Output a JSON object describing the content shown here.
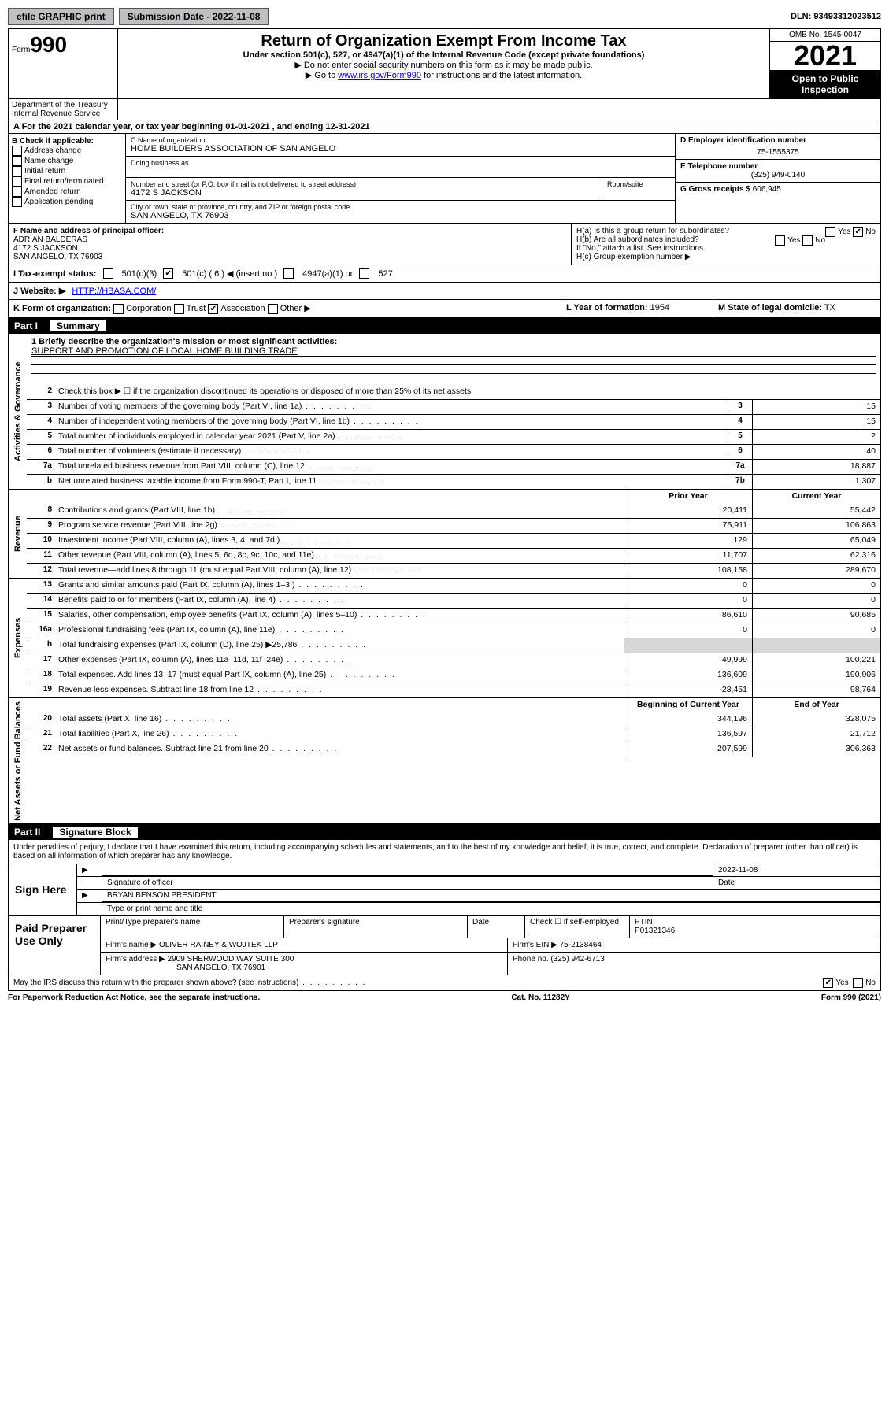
{
  "topbar": {
    "efile": "efile GRAPHIC print",
    "submission_label": "Submission Date - 2022-11-08",
    "dln": "DLN: 93493312023512"
  },
  "header": {
    "form_word": "Form",
    "form_num": "990",
    "title": "Return of Organization Exempt From Income Tax",
    "subtitle": "Under section 501(c), 527, or 4947(a)(1) of the Internal Revenue Code (except private foundations)",
    "note1": "▶ Do not enter social security numbers on this form as it may be made public.",
    "note2_pre": "▶ Go to ",
    "note2_link": "www.irs.gov/Form990",
    "note2_post": " for instructions and the latest information.",
    "omb": "OMB No. 1545-0047",
    "year": "2021",
    "open": "Open to Public Inspection",
    "dept": "Department of the Treasury Internal Revenue Service"
  },
  "rowA": {
    "text_pre": "A For the 2021 calendar year, or tax year beginning ",
    "begin": "01-01-2021",
    "text_mid": " , and ending ",
    "end": "12-31-2021"
  },
  "B": {
    "label": "B Check if applicable:",
    "items": [
      "Address change",
      "Name change",
      "Initial return",
      "Final return/terminated",
      "Amended return",
      "Application pending"
    ]
  },
  "C": {
    "name_label": "C Name of organization",
    "name": "HOME BUILDERS ASSOCIATION OF SAN ANGELO",
    "dba_label": "Doing business as",
    "street_label": "Number and street (or P.O. box if mail is not delivered to street address)",
    "room_label": "Room/suite",
    "street": "4172 S JACKSON",
    "city_label": "City or town, state or province, country, and ZIP or foreign postal code",
    "city": "SAN ANGELO, TX  76903"
  },
  "D": {
    "label": "D Employer identification number",
    "val": "75-1555375"
  },
  "E": {
    "label": "E Telephone number",
    "val": "(325) 949-0140"
  },
  "G": {
    "label": "G Gross receipts $",
    "val": "606,945"
  },
  "F": {
    "label": "F Name and address of principal officer:",
    "name": "ADRIAN BALDERAS",
    "addr1": "4172 S JACKSON",
    "addr2": "SAN ANGELO, TX  76903"
  },
  "H": {
    "a": "H(a)  Is this a group return for subordinates?",
    "b": "H(b)  Are all subordinates included?",
    "b_note": "If \"No,\" attach a list. See instructions.",
    "c": "H(c)  Group exemption number ▶",
    "yes": "Yes",
    "no": "No"
  },
  "I": {
    "label": "I   Tax-exempt status:",
    "opt1": "501(c)(3)",
    "opt2": "501(c) ( 6 ) ◀ (insert no.)",
    "opt3": "4947(a)(1) or",
    "opt4": "527"
  },
  "J": {
    "label": "J   Website: ▶",
    "val": "HTTP://HBASA.COM/"
  },
  "K": {
    "label": "K Form of organization:",
    "opts": [
      "Corporation",
      "Trust",
      "Association",
      "Other ▶"
    ]
  },
  "L": {
    "label": "L Year of formation:",
    "val": "1954"
  },
  "M": {
    "label": "M State of legal domicile:",
    "val": "TX"
  },
  "partI": {
    "name": "Part I",
    "title": "Summary"
  },
  "mission": {
    "q": "1  Briefly describe the organization's mission or most significant activities:",
    "a": "SUPPORT AND PROMOTION OF LOCAL HOME BUILDING TRADE"
  },
  "lines_top": [
    {
      "n": "2",
      "d": "Check this box ▶ ☐ if the organization discontinued its operations or disposed of more than 25% of its net assets."
    },
    {
      "n": "3",
      "d": "Number of voting members of the governing body (Part VI, line 1a)",
      "c": "3",
      "v": "15"
    },
    {
      "n": "4",
      "d": "Number of independent voting members of the governing body (Part VI, line 1b)",
      "c": "4",
      "v": "15"
    },
    {
      "n": "5",
      "d": "Total number of individuals employed in calendar year 2021 (Part V, line 2a)",
      "c": "5",
      "v": "2"
    },
    {
      "n": "6",
      "d": "Total number of volunteers (estimate if necessary)",
      "c": "6",
      "v": "40"
    },
    {
      "n": "7a",
      "d": "Total unrelated business revenue from Part VIII, column (C), line 12",
      "c": "7a",
      "v": "18,887"
    },
    {
      "n": "b",
      "d": "Net unrelated business taxable income from Form 990-T, Part I, line 11",
      "c": "7b",
      "v": "1,307"
    }
  ],
  "col_hdr": {
    "prior": "Prior Year",
    "current": "Current Year",
    "boy": "Beginning of Current Year",
    "eoy": "End of Year"
  },
  "revenue": [
    {
      "n": "8",
      "d": "Contributions and grants (Part VIII, line 1h)",
      "p": "20,411",
      "c": "55,442"
    },
    {
      "n": "9",
      "d": "Program service revenue (Part VIII, line 2g)",
      "p": "75,911",
      "c": "106,863"
    },
    {
      "n": "10",
      "d": "Investment income (Part VIII, column (A), lines 3, 4, and 7d )",
      "p": "129",
      "c": "65,049"
    },
    {
      "n": "11",
      "d": "Other revenue (Part VIII, column (A), lines 5, 6d, 8c, 9c, 10c, and 11e)",
      "p": "11,707",
      "c": "62,316"
    },
    {
      "n": "12",
      "d": "Total revenue—add lines 8 through 11 (must equal Part VIII, column (A), line 12)",
      "p": "108,158",
      "c": "289,670"
    }
  ],
  "expenses": [
    {
      "n": "13",
      "d": "Grants and similar amounts paid (Part IX, column (A), lines 1–3 )",
      "p": "0",
      "c": "0"
    },
    {
      "n": "14",
      "d": "Benefits paid to or for members (Part IX, column (A), line 4)",
      "p": "0",
      "c": "0"
    },
    {
      "n": "15",
      "d": "Salaries, other compensation, employee benefits (Part IX, column (A), lines 5–10)",
      "p": "86,610",
      "c": "90,685"
    },
    {
      "n": "16a",
      "d": "Professional fundraising fees (Part IX, column (A), line 11e)",
      "p": "0",
      "c": "0"
    },
    {
      "n": "b",
      "d": "Total fundraising expenses (Part IX, column (D), line 25) ▶25,786",
      "p": "",
      "c": "",
      "shade": true
    },
    {
      "n": "17",
      "d": "Other expenses (Part IX, column (A), lines 11a–11d, 11f–24e)",
      "p": "49,999",
      "c": "100,221"
    },
    {
      "n": "18",
      "d": "Total expenses. Add lines 13–17 (must equal Part IX, column (A), line 25)",
      "p": "136,609",
      "c": "190,906"
    },
    {
      "n": "19",
      "d": "Revenue less expenses. Subtract line 18 from line 12",
      "p": "-28,451",
      "c": "98,764"
    }
  ],
  "netassets": [
    {
      "n": "20",
      "d": "Total assets (Part X, line 16)",
      "p": "344,196",
      "c": "328,075"
    },
    {
      "n": "21",
      "d": "Total liabilities (Part X, line 26)",
      "p": "136,597",
      "c": "21,712"
    },
    {
      "n": "22",
      "d": "Net assets or fund balances. Subtract line 21 from line 20",
      "p": "207,599",
      "c": "306,363"
    }
  ],
  "side_labels": {
    "ag": "Activities & Governance",
    "rev": "Revenue",
    "exp": "Expenses",
    "na": "Net Assets or Fund Balances"
  },
  "partII": {
    "name": "Part II",
    "title": "Signature Block"
  },
  "penalty": "Under penalties of perjury, I declare that I have examined this return, including accompanying schedules and statements, and to the best of my knowledge and belief, it is true, correct, and complete. Declaration of preparer (other than officer) is based on all information of which preparer has any knowledge.",
  "sign": {
    "side": "Sign Here",
    "date": "2022-11-08",
    "sig_label": "Signature of officer",
    "date_label": "Date",
    "name": "BRYAN BENSON  PRESIDENT",
    "name_label": "Type or print name and title"
  },
  "prep": {
    "side": "Paid Preparer Use Only",
    "h1": "Print/Type preparer's name",
    "h2": "Preparer's signature",
    "h3": "Date",
    "h4a": "Check ☐ if self-employed",
    "h4b": "PTIN",
    "ptin": "P01321346",
    "firm_name_l": "Firm's name    ▶",
    "firm_name": "OLIVER RAINEY & WOJTEK LLP",
    "firm_ein_l": "Firm's EIN ▶",
    "firm_ein": "75-2138464",
    "firm_addr_l": "Firm's address ▶",
    "firm_addr1": "2909 SHERWOOD WAY SUITE 300",
    "firm_addr2": "SAN ANGELO, TX  76901",
    "phone_l": "Phone no.",
    "phone": "(325) 942-6713"
  },
  "discuss": {
    "q": "May the IRS discuss this return with the preparer shown above? (see instructions)",
    "yes": "Yes",
    "no": "No"
  },
  "footer": {
    "left": "For Paperwork Reduction Act Notice, see the separate instructions.",
    "mid": "Cat. No. 11282Y",
    "right": "Form 990 (2021)"
  }
}
